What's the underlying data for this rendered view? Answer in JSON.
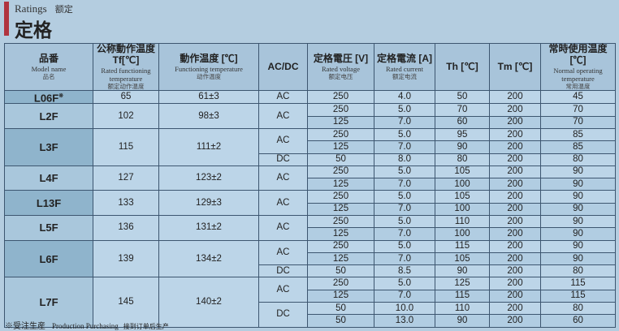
{
  "heading": {
    "subtitle": "Ratings",
    "subtitle_cn": "额定",
    "title": "定格"
  },
  "columns": [
    {
      "jp": "品番",
      "en": "Model name",
      "cn": "品名"
    },
    {
      "jp": "公称動作温度 Tf[℃]",
      "en": "Rated functioning temperature",
      "cn": "额定动作温度"
    },
    {
      "jp": "動作温度 [℃]",
      "en": "Functioning temperature",
      "cn": "动作温度"
    },
    {
      "jp": "AC/DC",
      "en": "",
      "cn": ""
    },
    {
      "jp": "定格電圧 [V]",
      "en": "Rated voltage",
      "cn": "额定电压"
    },
    {
      "jp": "定格電流 [A]",
      "en": "Rated current",
      "cn": "额定电流"
    },
    {
      "jp": "Th [℃]",
      "en": "",
      "cn": ""
    },
    {
      "jp": "Tm [℃]",
      "en": "",
      "cn": ""
    },
    {
      "jp": "常時使用温度 [℃]",
      "en": "Normal operating temperature",
      "cn": "常用温度"
    }
  ],
  "models": [
    {
      "name": "L06F",
      "mark": "※",
      "tf": "65",
      "op": "61±3",
      "types": [
        {
          "type": "AC",
          "rows": [
            [
              "250",
              "4.0",
              "50",
              "200",
              "45"
            ]
          ]
        }
      ]
    },
    {
      "name": "L2F",
      "tf": "102",
      "op": "98±3",
      "types": [
        {
          "type": "AC",
          "rows": [
            [
              "250",
              "5.0",
              "70",
              "200",
              "70"
            ],
            [
              "125",
              "7.0",
              "60",
              "200",
              "70"
            ]
          ]
        }
      ]
    },
    {
      "name": "L3F",
      "tf": "115",
      "op": "111±2",
      "types": [
        {
          "type": "AC",
          "rows": [
            [
              "250",
              "5.0",
              "95",
              "200",
              "85"
            ],
            [
              "125",
              "7.0",
              "90",
              "200",
              "85"
            ]
          ]
        },
        {
          "type": "DC",
          "rows": [
            [
              "50",
              "8.0",
              "80",
              "200",
              "80"
            ]
          ]
        }
      ]
    },
    {
      "name": "L4F",
      "tf": "127",
      "op": "123±2",
      "types": [
        {
          "type": "AC",
          "rows": [
            [
              "250",
              "5.0",
              "105",
              "200",
              "90"
            ],
            [
              "125",
              "7.0",
              "100",
              "200",
              "90"
            ]
          ]
        }
      ]
    },
    {
      "name": "L13F",
      "tf": "133",
      "op": "129±3",
      "types": [
        {
          "type": "AC",
          "rows": [
            [
              "250",
              "5.0",
              "105",
              "200",
              "90"
            ],
            [
              "125",
              "7.0",
              "100",
              "200",
              "90"
            ]
          ]
        }
      ]
    },
    {
      "name": "L5F",
      "tf": "136",
      "op": "131±2",
      "types": [
        {
          "type": "AC",
          "rows": [
            [
              "250",
              "5.0",
              "110",
              "200",
              "90"
            ],
            [
              "125",
              "7.0",
              "100",
              "200",
              "90"
            ]
          ]
        }
      ]
    },
    {
      "name": "L6F",
      "tf": "139",
      "op": "134±2",
      "types": [
        {
          "type": "AC",
          "rows": [
            [
              "250",
              "5.0",
              "115",
              "200",
              "90"
            ],
            [
              "125",
              "7.0",
              "105",
              "200",
              "90"
            ]
          ]
        },
        {
          "type": "DC",
          "rows": [
            [
              "50",
              "8.5",
              "90",
              "200",
              "80"
            ]
          ]
        }
      ]
    },
    {
      "name": "L7F",
      "tf": "145",
      "op": "140±2",
      "types": [
        {
          "type": "AC",
          "rows": [
            [
              "250",
              "5.0",
              "125",
              "200",
              "115"
            ],
            [
              "125",
              "7.0",
              "115",
              "200",
              "115"
            ]
          ]
        },
        {
          "type": "DC",
          "rows": [
            [
              "50",
              "10.0",
              "110",
              "200",
              "80"
            ],
            [
              "50",
              "13.0",
              "90",
              "200",
              "60"
            ]
          ]
        }
      ]
    }
  ],
  "footnote": {
    "mark": "※受注生産",
    "en": "Production Purchasing",
    "cn": "接到订单后生产"
  }
}
